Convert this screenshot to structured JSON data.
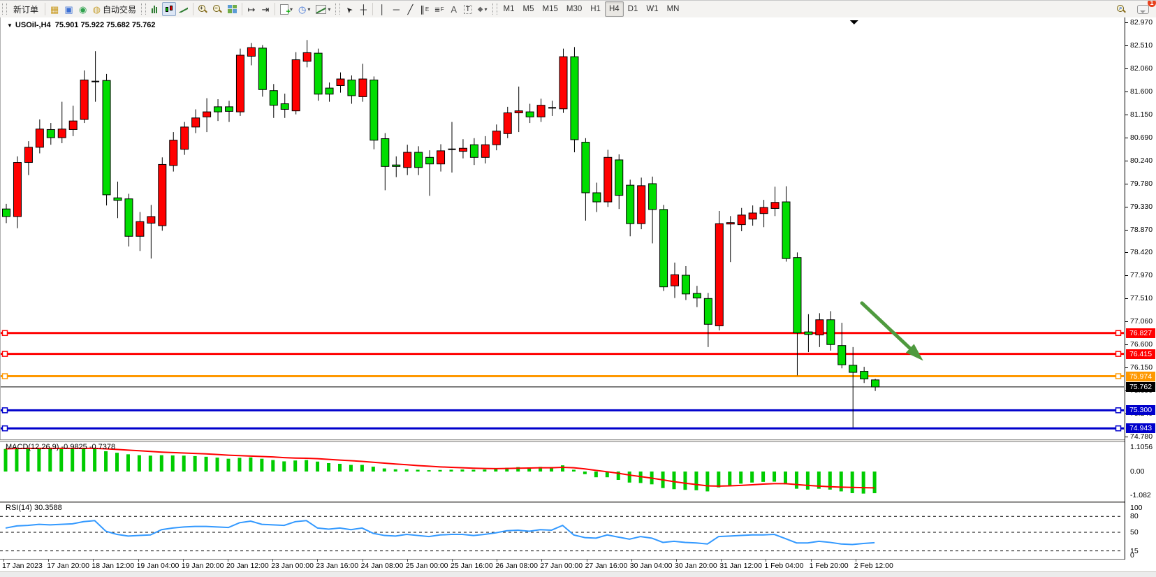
{
  "toolbar": {
    "new_order_label": "新订单",
    "auto_trading_label": "自动交易",
    "notification_badge": "1",
    "timeframes": [
      "M1",
      "M5",
      "M15",
      "M30",
      "H1",
      "H4",
      "D1",
      "W1",
      "MN"
    ],
    "active_timeframe": "H4",
    "glyphs": {
      "market_watch": "▦",
      "terminal": "▣",
      "signal": "◉",
      "globe": "◍",
      "clock": "◷",
      "cursor": "➤",
      "crosshair": "┼",
      "vertical_line": "│",
      "horizontal_line": "─",
      "trendline": "╱",
      "channel": "∥",
      "fibonacci": "≡",
      "text_tool": "A",
      "label_tool": "T",
      "shapes": "◆",
      "caret": "▼",
      "shift_end": "↦",
      "shift_start": "⇥"
    }
  },
  "chart_header": {
    "collapse_marker": "▼",
    "symbol_period": "USOil-,H4",
    "ohlc_text": "75.901 75.922 75.682 75.762"
  },
  "indicators": {
    "macd": {
      "label": "MACD(12,26,9)",
      "values_text": "-0.9825 -0.7378",
      "scale": [
        "1.1056",
        "0.00",
        "-1.082"
      ]
    },
    "rsi": {
      "label": "RSI(14)",
      "value_text": "30.3588",
      "scale": [
        "100",
        "80",
        "50",
        "15",
        "0"
      ]
    }
  },
  "price_axis": {
    "ticks": [
      "82.970",
      "82.510",
      "82.060",
      "81.600",
      "81.150",
      "80.690",
      "80.240",
      "79.780",
      "79.330",
      "78.870",
      "78.420",
      "77.970",
      "77.510",
      "77.060",
      "76.600",
      "76.150",
      "75.690",
      "75.240",
      "74.780"
    ],
    "boxes": [
      {
        "text": "76.827",
        "bg": "#ff0000"
      },
      {
        "text": "76.415",
        "bg": "#ff0000"
      },
      {
        "text": "75.974",
        "bg": "#ff9800"
      },
      {
        "text": "75.762",
        "bg": "#000000"
      },
      {
        "text": "75.300",
        "bg": "#0000cc"
      },
      {
        "text": "74.943",
        "bg": "#0000cc"
      }
    ]
  },
  "time_axis": {
    "labels": [
      "17 Jan 2023",
      "17 Jan 20:00",
      "18 Jan 12:00",
      "19 Jan 04:00",
      "19 Jan 20:00",
      "20 Jan 12:00",
      "23 Jan 00:00",
      "23 Jan 16:00",
      "24 Jan 08:00",
      "25 Jan 00:00",
      "25 Jan 16:00",
      "26 Jan 08:00",
      "27 Jan 00:00",
      "27 Jan 16:00",
      "30 Jan 04:00",
      "30 Jan 20:00",
      "31 Jan 12:00",
      "1 Feb 04:00",
      "1 Feb 20:00",
      "2 Feb 12:00"
    ]
  },
  "chart_data": {
    "type": "candlestick",
    "symbol": "USOil-",
    "period": "H4",
    "current_bar": {
      "open": 75.901,
      "high": 75.922,
      "low": 75.682,
      "close": 75.762
    },
    "y_axis": {
      "price_at_top": 83.066,
      "price_at_bottom": 74.725
    },
    "bull_color": "#ff0000",
    "bear_color": "#00dd00",
    "wick_color": "#000000",
    "candles": [
      [
        79.28,
        79.38,
        79.0,
        79.13
      ],
      [
        79.13,
        80.32,
        78.9,
        80.2
      ],
      [
        80.2,
        80.62,
        79.95,
        80.5
      ],
      [
        80.5,
        81.05,
        80.38,
        80.86
      ],
      [
        80.85,
        80.98,
        80.55,
        80.69
      ],
      [
        80.69,
        81.4,
        80.58,
        80.86
      ],
      [
        80.85,
        81.32,
        80.72,
        81.02
      ],
      [
        81.05,
        82.02,
        80.98,
        81.83
      ],
      [
        81.82,
        82.4,
        81.4,
        81.8
      ],
      [
        81.82,
        81.95,
        79.35,
        79.56
      ],
      [
        79.5,
        79.82,
        79.1,
        79.45
      ],
      [
        79.48,
        79.58,
        78.54,
        78.74
      ],
      [
        78.74,
        79.22,
        78.45,
        79.03
      ],
      [
        79.0,
        79.36,
        78.3,
        79.13
      ],
      [
        78.95,
        80.3,
        78.85,
        80.16
      ],
      [
        80.14,
        80.8,
        80.02,
        80.64
      ],
      [
        80.46,
        81.0,
        80.35,
        80.9
      ],
      [
        80.9,
        81.25,
        80.78,
        81.08
      ],
      [
        81.1,
        81.47,
        80.8,
        81.2
      ],
      [
        81.3,
        81.45,
        81.02,
        81.2
      ],
      [
        81.3,
        81.42,
        81.0,
        81.21
      ],
      [
        81.2,
        82.45,
        81.12,
        82.32
      ],
      [
        82.3,
        82.56,
        82.12,
        82.47
      ],
      [
        82.46,
        82.52,
        81.5,
        81.64
      ],
      [
        81.62,
        81.75,
        81.08,
        81.33
      ],
      [
        81.36,
        81.56,
        81.08,
        81.25
      ],
      [
        81.22,
        82.38,
        81.15,
        82.23
      ],
      [
        82.2,
        82.62,
        82.08,
        82.37
      ],
      [
        82.36,
        82.45,
        81.42,
        81.55
      ],
      [
        81.67,
        81.78,
        81.4,
        81.55
      ],
      [
        81.72,
        81.98,
        81.58,
        81.85
      ],
      [
        81.83,
        81.92,
        81.36,
        81.52
      ],
      [
        81.5,
        82.15,
        81.4,
        81.85
      ],
      [
        81.83,
        81.9,
        80.46,
        80.64
      ],
      [
        80.67,
        80.78,
        79.65,
        80.12
      ],
      [
        80.15,
        80.32,
        79.91,
        80.12
      ],
      [
        80.1,
        80.55,
        79.95,
        80.4
      ],
      [
        80.4,
        80.52,
        79.95,
        80.1
      ],
      [
        80.3,
        80.44,
        79.54,
        80.17
      ],
      [
        80.17,
        80.56,
        80.02,
        80.43
      ],
      [
        80.45,
        81.0,
        80.0,
        80.46
      ],
      [
        80.42,
        80.66,
        80.28,
        80.48
      ],
      [
        80.55,
        80.68,
        80.15,
        80.3
      ],
      [
        80.3,
        80.72,
        80.18,
        80.55
      ],
      [
        80.55,
        80.95,
        80.44,
        80.82
      ],
      [
        80.77,
        81.3,
        80.68,
        81.18
      ],
      [
        81.18,
        81.7,
        80.8,
        81.22
      ],
      [
        81.2,
        81.36,
        80.98,
        81.1
      ],
      [
        81.1,
        81.46,
        81.0,
        81.33
      ],
      [
        81.3,
        81.42,
        81.12,
        81.28
      ],
      [
        81.26,
        82.45,
        81.18,
        82.29
      ],
      [
        82.29,
        82.48,
        80.4,
        80.65
      ],
      [
        80.6,
        80.68,
        79.05,
        79.6
      ],
      [
        79.6,
        79.8,
        79.22,
        79.42
      ],
      [
        79.42,
        80.45,
        79.32,
        80.3
      ],
      [
        80.25,
        80.36,
        79.28,
        79.55
      ],
      [
        79.75,
        79.86,
        78.74,
        78.99
      ],
      [
        78.99,
        79.9,
        78.88,
        79.74
      ],
      [
        79.78,
        79.92,
        78.6,
        79.27
      ],
      [
        79.27,
        79.36,
        77.66,
        77.74
      ],
      [
        77.76,
        78.22,
        77.52,
        77.98
      ],
      [
        77.97,
        78.15,
        77.48,
        77.6
      ],
      [
        77.61,
        77.76,
        77.34,
        77.52
      ],
      [
        77.51,
        77.62,
        76.55,
        77.0
      ],
      [
        76.97,
        79.24,
        76.88,
        78.99
      ],
      [
        78.99,
        79.14,
        78.23,
        79.01
      ],
      [
        78.97,
        79.3,
        78.84,
        79.16
      ],
      [
        79.08,
        79.35,
        78.95,
        79.2
      ],
      [
        79.19,
        79.46,
        78.92,
        79.31
      ],
      [
        79.29,
        79.72,
        79.14,
        79.41
      ],
      [
        79.42,
        79.73,
        78.24,
        78.3
      ],
      [
        78.32,
        78.42,
        75.99,
        76.83
      ],
      [
        76.85,
        77.2,
        76.45,
        76.8
      ],
      [
        76.79,
        77.22,
        76.55,
        77.09
      ],
      [
        77.09,
        77.26,
        76.48,
        76.6
      ],
      [
        76.58,
        77.03,
        76.13,
        76.2
      ],
      [
        76.19,
        76.55,
        74.96,
        76.05
      ],
      [
        76.07,
        76.16,
        75.84,
        75.92
      ],
      [
        75.901,
        75.922,
        75.682,
        75.762
      ]
    ],
    "hlines": [
      {
        "price": 76.827,
        "color": "#ff0000",
        "width": 3
      },
      {
        "price": 76.415,
        "color": "#ff0000",
        "width": 3
      },
      {
        "price": 75.974,
        "color": "#ff9800",
        "width": 3
      },
      {
        "price": 75.3,
        "color": "#0000cc",
        "width": 3
      },
      {
        "price": 74.943,
        "color": "#0000cc",
        "width": 3
      }
    ],
    "price_line": {
      "price": 75.762,
      "color": "#000000",
      "width": 1
    },
    "arrow": {
      "from_bar": 76.8,
      "from_price": 77.42,
      "to_bar": 82.3,
      "to_price": 76.28,
      "color": "#4e9a3e"
    },
    "shift_marker_bar": 76.1,
    "macd": {
      "max": 1.1056,
      "min": -1.082,
      "hist_color": "#00cc00",
      "signal_color": "#ff0000",
      "histogram": [
        1.02,
        1.05,
        1.06,
        1.07,
        1.05,
        1.04,
        1.05,
        1.06,
        1.03,
        0.92,
        0.85,
        0.78,
        0.74,
        0.72,
        0.74,
        0.73,
        0.72,
        0.7,
        0.67,
        0.63,
        0.58,
        0.62,
        0.64,
        0.58,
        0.52,
        0.46,
        0.5,
        0.52,
        0.45,
        0.38,
        0.35,
        0.3,
        0.3,
        0.22,
        0.14,
        0.1,
        0.1,
        0.08,
        0.06,
        0.07,
        0.08,
        0.09,
        0.08,
        0.09,
        0.12,
        0.17,
        0.2,
        0.19,
        0.21,
        0.2,
        0.28,
        0.08,
        -0.12,
        -0.26,
        -0.26,
        -0.38,
        -0.5,
        -0.52,
        -0.58,
        -0.75,
        -0.8,
        -0.83,
        -0.85,
        -0.9,
        -0.72,
        -0.62,
        -0.55,
        -0.5,
        -0.47,
        -0.46,
        -0.58,
        -0.78,
        -0.82,
        -0.78,
        -0.82,
        -0.9,
        -0.98,
        -1.0,
        -0.9825
      ],
      "signal": [
        1.03,
        1.04,
        1.05,
        1.05,
        1.05,
        1.05,
        1.05,
        1.05,
        1.05,
        1.03,
        1.0,
        0.97,
        0.94,
        0.91,
        0.88,
        0.86,
        0.84,
        0.82,
        0.8,
        0.77,
        0.74,
        0.72,
        0.7,
        0.68,
        0.66,
        0.63,
        0.61,
        0.6,
        0.58,
        0.55,
        0.52,
        0.49,
        0.46,
        0.42,
        0.38,
        0.34,
        0.31,
        0.27,
        0.24,
        0.21,
        0.19,
        0.17,
        0.15,
        0.14,
        0.13,
        0.14,
        0.15,
        0.16,
        0.17,
        0.17,
        0.19,
        0.17,
        0.12,
        0.05,
        -0.01,
        -0.08,
        -0.16,
        -0.23,
        -0.3,
        -0.38,
        -0.46,
        -0.53,
        -0.59,
        -0.65,
        -0.66,
        -0.65,
        -0.63,
        -0.6,
        -0.57,
        -0.55,
        -0.55,
        -0.59,
        -0.63,
        -0.66,
        -0.69,
        -0.71,
        -0.72,
        -0.73,
        -0.7378
      ]
    },
    "rsi": {
      "color": "#3399ff",
      "levels": [
        80,
        50,
        15
      ],
      "values": [
        58,
        62,
        63,
        65,
        64,
        65,
        66,
        70,
        72,
        52,
        46,
        43,
        44,
        45,
        55,
        58,
        60,
        61,
        61,
        60,
        59,
        68,
        71,
        65,
        64,
        63,
        70,
        72,
        58,
        56,
        58,
        55,
        58,
        48,
        44,
        43,
        46,
        44,
        42,
        45,
        46,
        46,
        44,
        46,
        49,
        53,
        54,
        52,
        55,
        54,
        63,
        45,
        40,
        39,
        45,
        41,
        37,
        42,
        39,
        31,
        33,
        31,
        30,
        28,
        42,
        43,
        44,
        45,
        45,
        46,
        38,
        30,
        30,
        33,
        31,
        28,
        27,
        29,
        30.36
      ]
    }
  }
}
